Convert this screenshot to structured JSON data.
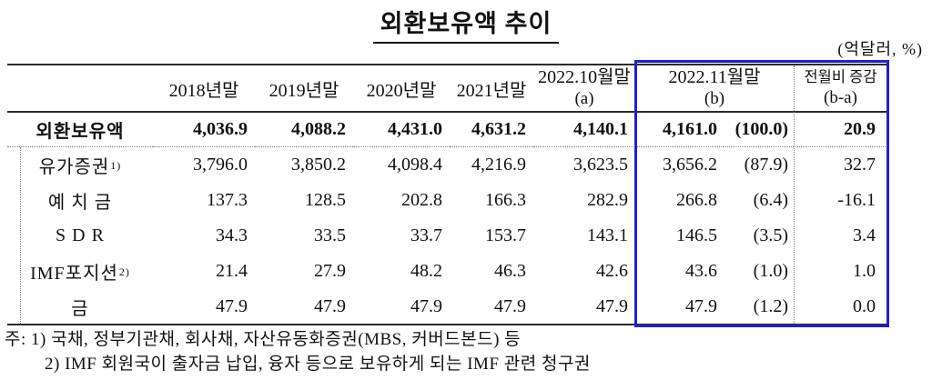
{
  "title": "외환보유액  추이",
  "unit_note": "(억달러, %)",
  "highlight_color": "#2222bb",
  "table": {
    "header": {
      "years": [
        "2018년말",
        "2019년말",
        "2020년말",
        "2021년말"
      ],
      "oct": {
        "line1": "2022.10월말",
        "line2": "(a)"
      },
      "nov": {
        "line1": "2022.11월말",
        "line2": "(b)"
      },
      "diff": {
        "line1": "전월비 증감",
        "line2": "(b-a)"
      }
    },
    "rows": [
      {
        "label": "외환보유액",
        "sup": "",
        "bold": true,
        "values": [
          "4,036.9",
          "4,088.2",
          "4,431.0",
          "4,631.2",
          "4,140.1"
        ],
        "nov": "4,161.0",
        "share": "(100.0)",
        "diff": "20.9"
      },
      {
        "label": "유가증권",
        "sup": "1)",
        "bold": false,
        "values": [
          "3,796.0",
          "3,850.2",
          "4,098.4",
          "4,216.9",
          "3,623.5"
        ],
        "nov": "3,656.2",
        "share": "(87.9)",
        "diff": "32.7"
      },
      {
        "label": "예 치 금",
        "sup": "",
        "bold": false,
        "values": [
          "137.3",
          "128.5",
          "202.8",
          "166.3",
          "282.9"
        ],
        "nov": "266.8",
        "share": "(6.4)",
        "diff": "-16.1"
      },
      {
        "label": "S D R",
        "sup": "",
        "bold": false,
        "values": [
          "34.3",
          "33.5",
          "33.7",
          "153.7",
          "143.1"
        ],
        "nov": "146.5",
        "share": "(3.5)",
        "diff": "3.4"
      },
      {
        "label": "IMF포지션",
        "sup": "2)",
        "bold": false,
        "values": [
          "21.4",
          "27.9",
          "48.2",
          "46.3",
          "42.6"
        ],
        "nov": "43.6",
        "share": "(1.0)",
        "diff": "1.0"
      },
      {
        "label": "금",
        "sup": "",
        "bold": false,
        "values": [
          "47.9",
          "47.9",
          "47.9",
          "47.9",
          "47.9"
        ],
        "nov": "47.9",
        "share": "(1.2)",
        "diff": "0.0"
      }
    ]
  },
  "notes": [
    "주: 1) 국채, 정부기관채, 회사채, 자산유동화증권(MBS, 커버드본드) 등",
    "2) IMF 회원국이 출자금 납입, 융자 등으로 보유하게 되는 IMF 관련 청구권"
  ]
}
